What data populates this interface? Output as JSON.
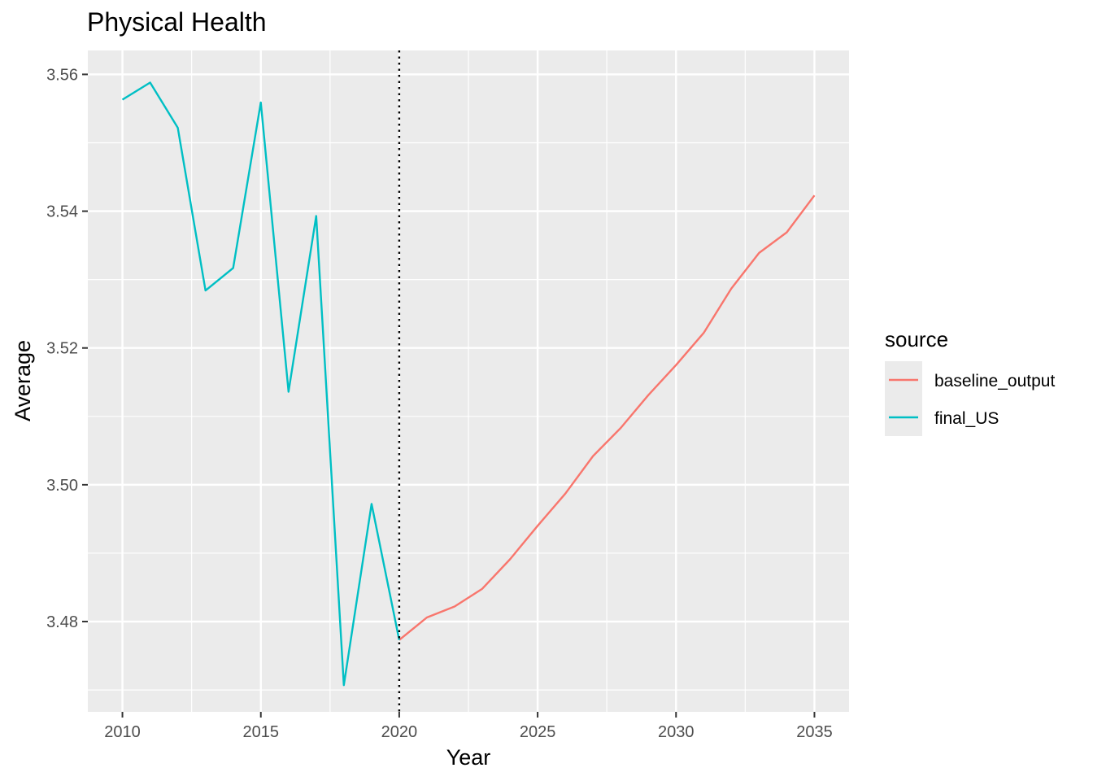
{
  "chart_data": {
    "type": "line",
    "title": "Physical Health",
    "xlabel": "Year",
    "ylabel": "Average",
    "xlim": [
      2008.75,
      2036.25
    ],
    "ylim": [
      3.4668,
      3.5635
    ],
    "x_ticks": [
      2010,
      2015,
      2020,
      2025,
      2030,
      2035
    ],
    "x_tick_labels": [
      "2010",
      "2015",
      "2020",
      "2025",
      "2030",
      "2035"
    ],
    "y_ticks": [
      3.48,
      3.5,
      3.52,
      3.54,
      3.56
    ],
    "y_tick_labels": [
      "3.48",
      "3.50",
      "3.52",
      "3.54",
      "3.56"
    ],
    "grid": true,
    "vline": {
      "x": 2020,
      "style": "dotted"
    },
    "legend": {
      "title": "source",
      "placement": "right",
      "entries": [
        "baseline_output",
        "final_US"
      ]
    },
    "series": [
      {
        "name": "baseline_output",
        "color": "#f8766d",
        "x": [
          2020,
          2021,
          2022,
          2023,
          2024,
          2025,
          2026,
          2027,
          2028,
          2029,
          2030,
          2031,
          2032,
          2033,
          2034,
          2035
        ],
        "values": [
          3.4773,
          3.4806,
          3.4822,
          3.4848,
          3.4891,
          3.494,
          3.4987,
          3.5042,
          3.5083,
          3.5131,
          3.5175,
          3.5222,
          3.5287,
          3.5339,
          3.5369,
          3.5423
        ]
      },
      {
        "name": "final_US",
        "color": "#00bfc4",
        "x": [
          2010,
          2011,
          2012,
          2013,
          2014,
          2015,
          2016,
          2017,
          2018,
          2019,
          2020
        ],
        "values": [
          3.5563,
          3.5588,
          3.5522,
          3.5284,
          3.5317,
          3.5559,
          3.5136,
          3.5393,
          3.4707,
          3.4972,
          3.4773
        ]
      }
    ]
  }
}
